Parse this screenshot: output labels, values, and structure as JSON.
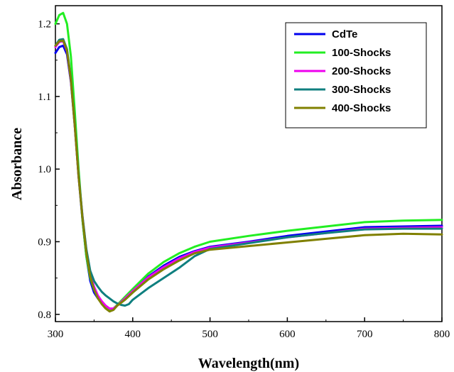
{
  "chart_data": {
    "type": "line",
    "title": "",
    "xlabel": "Wavelength(nm)",
    "ylabel": "Absorbance",
    "xlim": [
      300,
      800
    ],
    "ylim": [
      0.79,
      1.225
    ],
    "xticks": [
      "300",
      "400",
      "500",
      "600",
      "700",
      "800"
    ],
    "yticks": [
      "0.8",
      "0.9",
      "1.0",
      "1.1",
      "1.2"
    ],
    "grid": false,
    "legend_position": "top-right",
    "series": [
      {
        "name": "CdTe",
        "color": "#0000ee",
        "points": [
          [
            300,
            1.16
          ],
          [
            305,
            1.168
          ],
          [
            310,
            1.17
          ],
          [
            315,
            1.158
          ],
          [
            320,
            1.12
          ],
          [
            325,
            1.06
          ],
          [
            330,
            0.99
          ],
          [
            335,
            0.93
          ],
          [
            340,
            0.88
          ],
          [
            345,
            0.846
          ],
          [
            350,
            0.83
          ],
          [
            355,
            0.822
          ],
          [
            360,
            0.816
          ],
          [
            365,
            0.81
          ],
          [
            370,
            0.806
          ],
          [
            375,
            0.807
          ],
          [
            380,
            0.812
          ],
          [
            390,
            0.822
          ],
          [
            400,
            0.832
          ],
          [
            420,
            0.852
          ],
          [
            440,
            0.867
          ],
          [
            460,
            0.879
          ],
          [
            480,
            0.887
          ],
          [
            500,
            0.893
          ],
          [
            550,
            0.9
          ],
          [
            600,
            0.908
          ],
          [
            650,
            0.914
          ],
          [
            700,
            0.92
          ],
          [
            750,
            0.921
          ],
          [
            800,
            0.922
          ]
        ]
      },
      {
        "name": "100-Shocks",
        "color": "#22ee22",
        "points": [
          [
            300,
            1.2
          ],
          [
            305,
            1.212
          ],
          [
            310,
            1.215
          ],
          [
            315,
            1.2
          ],
          [
            320,
            1.155
          ],
          [
            325,
            1.08
          ],
          [
            330,
            1.0
          ],
          [
            335,
            0.93
          ],
          [
            340,
            0.88
          ],
          [
            345,
            0.85
          ],
          [
            350,
            0.834
          ],
          [
            355,
            0.824
          ],
          [
            360,
            0.816
          ],
          [
            365,
            0.81
          ],
          [
            370,
            0.806
          ],
          [
            375,
            0.808
          ],
          [
            380,
            0.813
          ],
          [
            390,
            0.824
          ],
          [
            400,
            0.835
          ],
          [
            420,
            0.856
          ],
          [
            440,
            0.872
          ],
          [
            460,
            0.884
          ],
          [
            480,
            0.893
          ],
          [
            500,
            0.9
          ],
          [
            550,
            0.908
          ],
          [
            600,
            0.915
          ],
          [
            650,
            0.921
          ],
          [
            700,
            0.927
          ],
          [
            750,
            0.929
          ],
          [
            800,
            0.93
          ]
        ]
      },
      {
        "name": "200-Shocks",
        "color": "#ee00ee",
        "points": [
          [
            300,
            1.168
          ],
          [
            305,
            1.175
          ],
          [
            310,
            1.176
          ],
          [
            315,
            1.162
          ],
          [
            320,
            1.122
          ],
          [
            325,
            1.06
          ],
          [
            330,
            0.99
          ],
          [
            335,
            0.935
          ],
          [
            340,
            0.888
          ],
          [
            345,
            0.856
          ],
          [
            350,
            0.838
          ],
          [
            355,
            0.826
          ],
          [
            360,
            0.818
          ],
          [
            365,
            0.812
          ],
          [
            370,
            0.808
          ],
          [
            375,
            0.808
          ],
          [
            380,
            0.812
          ],
          [
            390,
            0.822
          ],
          [
            400,
            0.832
          ],
          [
            420,
            0.851
          ],
          [
            440,
            0.865
          ],
          [
            460,
            0.877
          ],
          [
            480,
            0.886
          ],
          [
            500,
            0.892
          ],
          [
            550,
            0.899
          ],
          [
            600,
            0.906
          ],
          [
            650,
            0.912
          ],
          [
            700,
            0.918
          ],
          [
            750,
            0.919
          ],
          [
            800,
            0.92
          ]
        ]
      },
      {
        "name": "300-Shocks",
        "color": "#0f7f7f",
        "points": [
          [
            300,
            1.17
          ],
          [
            305,
            1.178
          ],
          [
            310,
            1.179
          ],
          [
            315,
            1.165
          ],
          [
            320,
            1.125
          ],
          [
            325,
            1.062
          ],
          [
            330,
            0.992
          ],
          [
            335,
            0.935
          ],
          [
            340,
            0.89
          ],
          [
            345,
            0.86
          ],
          [
            350,
            0.846
          ],
          [
            355,
            0.838
          ],
          [
            360,
            0.831
          ],
          [
            365,
            0.826
          ],
          [
            370,
            0.822
          ],
          [
            375,
            0.818
          ],
          [
            380,
            0.815
          ],
          [
            385,
            0.813
          ],
          [
            390,
            0.812
          ],
          [
            395,
            0.814
          ],
          [
            400,
            0.82
          ],
          [
            420,
            0.836
          ],
          [
            440,
            0.85
          ],
          [
            460,
            0.864
          ],
          [
            480,
            0.88
          ],
          [
            500,
            0.89
          ],
          [
            550,
            0.898
          ],
          [
            600,
            0.906
          ],
          [
            650,
            0.912
          ],
          [
            700,
            0.917
          ],
          [
            750,
            0.918
          ],
          [
            800,
            0.918
          ]
        ]
      },
      {
        "name": "400-Shocks",
        "color": "#808000",
        "points": [
          [
            300,
            1.17
          ],
          [
            305,
            1.176
          ],
          [
            310,
            1.177
          ],
          [
            315,
            1.163
          ],
          [
            320,
            1.123
          ],
          [
            325,
            1.06
          ],
          [
            330,
            0.99
          ],
          [
            335,
            0.932
          ],
          [
            340,
            0.885
          ],
          [
            345,
            0.852
          ],
          [
            350,
            0.834
          ],
          [
            355,
            0.822
          ],
          [
            360,
            0.814
          ],
          [
            365,
            0.808
          ],
          [
            370,
            0.804
          ],
          [
            375,
            0.806
          ],
          [
            380,
            0.812
          ],
          [
            390,
            0.82
          ],
          [
            400,
            0.83
          ],
          [
            420,
            0.848
          ],
          [
            440,
            0.862
          ],
          [
            460,
            0.874
          ],
          [
            480,
            0.884
          ],
          [
            500,
            0.889
          ],
          [
            550,
            0.894
          ],
          [
            600,
            0.899
          ],
          [
            650,
            0.904
          ],
          [
            700,
            0.909
          ],
          [
            750,
            0.911
          ],
          [
            800,
            0.91
          ]
        ]
      }
    ]
  }
}
